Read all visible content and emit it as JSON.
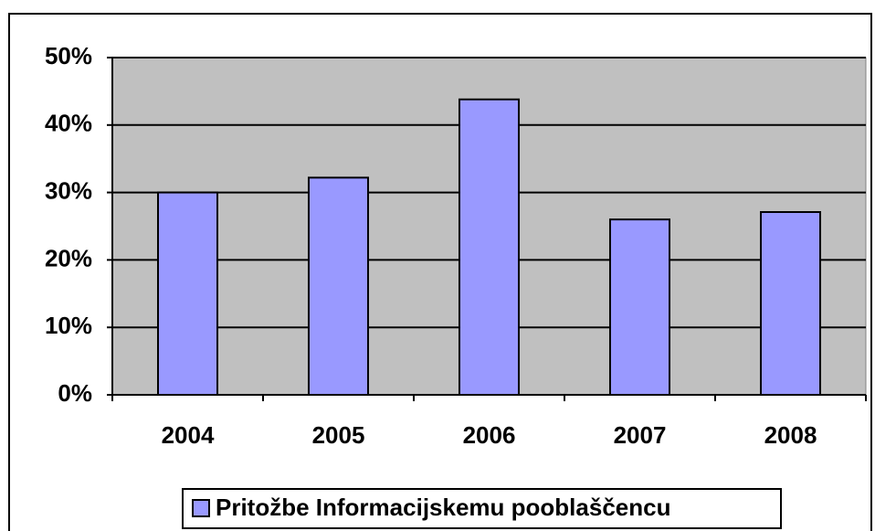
{
  "chart_data": {
    "type": "bar",
    "categories": [
      "2004",
      "2005",
      "2006",
      "2007",
      "2008"
    ],
    "series": [
      {
        "name": "Pritožbe Informacijskemu pooblaščencu",
        "color": "#9999ff",
        "values": [
          30,
          32.2,
          43.8,
          26,
          27.1
        ]
      }
    ],
    "ylim": [
      0,
      50
    ],
    "yticks": [
      {
        "value": 0,
        "label": "0%"
      },
      {
        "value": 10,
        "label": "10%"
      },
      {
        "value": 20,
        "label": "20%"
      },
      {
        "value": 30,
        "label": "30%"
      },
      {
        "value": 40,
        "label": "40%"
      },
      {
        "value": 50,
        "label": "50%"
      }
    ],
    "grid": true,
    "plot_background": "#c0c0c0",
    "legend": "bottom"
  }
}
